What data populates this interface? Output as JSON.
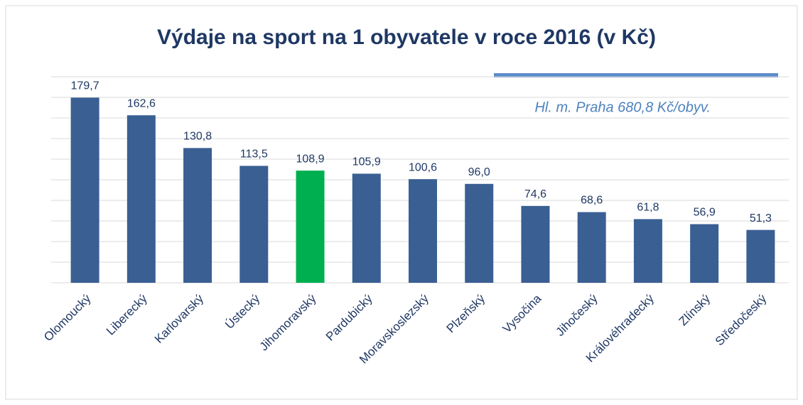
{
  "chart_data": {
    "type": "bar",
    "title": "Výdaje na sport na 1 obyvatele v roce 2016 (v Kč)",
    "annotation": "Hl. m. Praha 680,8 Kč/obyv.",
    "categories": [
      "Olomoucký",
      "Liberecký",
      "Karlovarský",
      "Ústecký",
      "Jihomoravský",
      "Pardubický",
      "Moravskoslezský",
      "Plzeňský",
      "Vysočina",
      "Jihočeský",
      "Královéhradecký",
      "Zlínský",
      "Středočeský"
    ],
    "values": [
      179.7,
      162.6,
      130.8,
      113.5,
      108.9,
      105.9,
      100.6,
      96.0,
      74.6,
      68.6,
      61.8,
      56.9,
      51.3
    ],
    "value_labels": [
      "179,7",
      "162,6",
      "130,8",
      "113,5",
      "108,9",
      "105,9",
      "100,6",
      "96,0",
      "74,6",
      "68,6",
      "61,8",
      "56,9",
      "51,3"
    ],
    "colors": [
      "#3a5f93",
      "#3a5f93",
      "#3a5f93",
      "#3a5f93",
      "#00b050",
      "#3a5f93",
      "#3a5f93",
      "#3a5f93",
      "#3a5f93",
      "#3a5f93",
      "#3a5f93",
      "#3a5f93",
      "#3a5f93"
    ],
    "ylim": [
      0,
      200
    ],
    "yticks": [
      0,
      20,
      40,
      60,
      80,
      100,
      120,
      140,
      160,
      180,
      200
    ],
    "grid": true
  }
}
